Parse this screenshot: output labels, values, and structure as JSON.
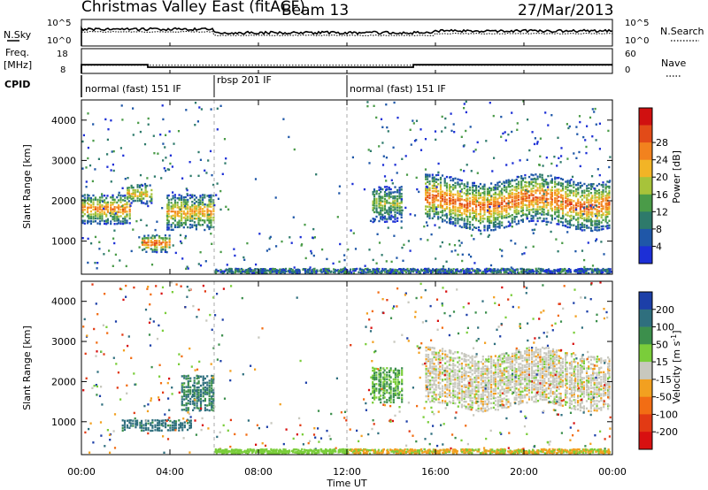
{
  "header": {
    "station": "Christmas Valley East (fitACF)",
    "beam": "Beam 13",
    "date": "27/Mar/2013"
  },
  "noise_panel": {
    "left_label": "N.Sky",
    "right_label": "N.Search",
    "left_ticks": [
      "10^5",
      "10^0"
    ],
    "right_ticks": [
      "10^5",
      "10^0"
    ]
  },
  "freq_panel": {
    "left_label_1": "Freq.",
    "left_label_2": "[MHz]",
    "right_label": "Nave",
    "left_ticks": [
      "18",
      "8"
    ],
    "right_ticks": [
      "60",
      "0"
    ],
    "freq_series_MHz": [
      [
        0.0,
        11.5
      ],
      [
        3.0,
        11.5
      ],
      [
        3.0,
        10.5
      ],
      [
        15.0,
        10.5
      ],
      [
        15.0,
        11.5
      ],
      [
        24.0,
        11.5
      ]
    ],
    "nave_series": [
      [
        0.0,
        20
      ],
      [
        24.0,
        20
      ]
    ]
  },
  "cpid_panel": {
    "label": "CPID",
    "segments": [
      {
        "start": 0.0,
        "end": 6.0,
        "name": "normal (fast) 151 IF"
      },
      {
        "start": 6.0,
        "end": 12.0,
        "name": "rbsp 201 IF"
      },
      {
        "start": 12.0,
        "end": 24.0,
        "name": "normal (fast) 151 IF"
      }
    ]
  },
  "chart_data": [
    {
      "type": "heatmap",
      "parameter": "power",
      "ylabel": "Slant Range [km]",
      "ylim": [
        180,
        4500
      ],
      "yticks": [
        "1000",
        "2000",
        "3000",
        "4000"
      ],
      "colorbar_label": "Power [dB]",
      "colorbar_ticks": [
        "4",
        "8",
        "12",
        "16",
        "20",
        "24",
        "28"
      ],
      "colorbar_range": [
        0,
        32
      ],
      "colors": [
        "#1c2fd6",
        "#1f57a8",
        "#2e7a6b",
        "#4a9b48",
        "#a7c33a",
        "#f2b426",
        "#f2821e",
        "#e24b18",
        "#d01010"
      ],
      "regions": [
        {
          "t_start": 0.0,
          "t_end": 2.2,
          "r_min": 1450,
          "r_max": 2200,
          "peak_db": 24
        },
        {
          "t_start": 2.0,
          "t_end": 3.2,
          "r_min": 1950,
          "r_max": 2450,
          "peak_db": 20
        },
        {
          "t_start": 2.7,
          "t_end": 4.0,
          "r_min": 750,
          "r_max": 1200,
          "peak_db": 26
        },
        {
          "t_start": 3.8,
          "t_end": 6.0,
          "r_min": 1300,
          "r_max": 2200,
          "peak_db": 22
        },
        {
          "t_start": 13.1,
          "t_end": 14.5,
          "r_min": 1500,
          "r_max": 2400,
          "peak_db": 16
        },
        {
          "t_start": 15.5,
          "t_end": 24.0,
          "r_min": 1400,
          "r_max": 2600,
          "peak_db": 26
        }
      ]
    },
    {
      "type": "heatmap",
      "parameter": "velocity",
      "ylabel": "Slant Range [km]",
      "ylim": [
        180,
        4500
      ],
      "yticks": [
        "1000",
        "2000",
        "3000",
        "4000"
      ],
      "colorbar_label": "Velocity [m s^-1]",
      "colorbar_ticks": [
        "200",
        "100",
        "50",
        "15",
        "-15",
        "-50",
        "-100",
        "-200"
      ],
      "colorbar_range": [
        -250,
        250
      ],
      "colors": [
        "#1c3fa8",
        "#2f6f7e",
        "#3c8f4c",
        "#7acd3a",
        "#c8c8be",
        "#f2a020",
        "#f26d14",
        "#e23a14",
        "#d81010"
      ],
      "regions": [
        {
          "t_start": 4.5,
          "t_end": 6.0,
          "r_min": 1300,
          "r_max": 2200,
          "velocity": 80
        },
        {
          "t_start": 1.8,
          "t_end": 5.0,
          "r_min": 800,
          "r_max": 1100,
          "velocity": 90
        },
        {
          "t_start": 13.1,
          "t_end": 14.5,
          "r_min": 1500,
          "r_max": 2400,
          "velocity": 35
        },
        {
          "t_start": 15.5,
          "t_end": 24.0,
          "r_min": 1400,
          "r_max": 2800,
          "velocity": 0
        }
      ]
    }
  ],
  "x_axis": {
    "label": "Time UT",
    "ticks": [
      "00:00",
      "04:00",
      "08:00",
      "12:00",
      "16:00",
      "20:00",
      "00:00"
    ],
    "range_hours": [
      0,
      24
    ]
  }
}
